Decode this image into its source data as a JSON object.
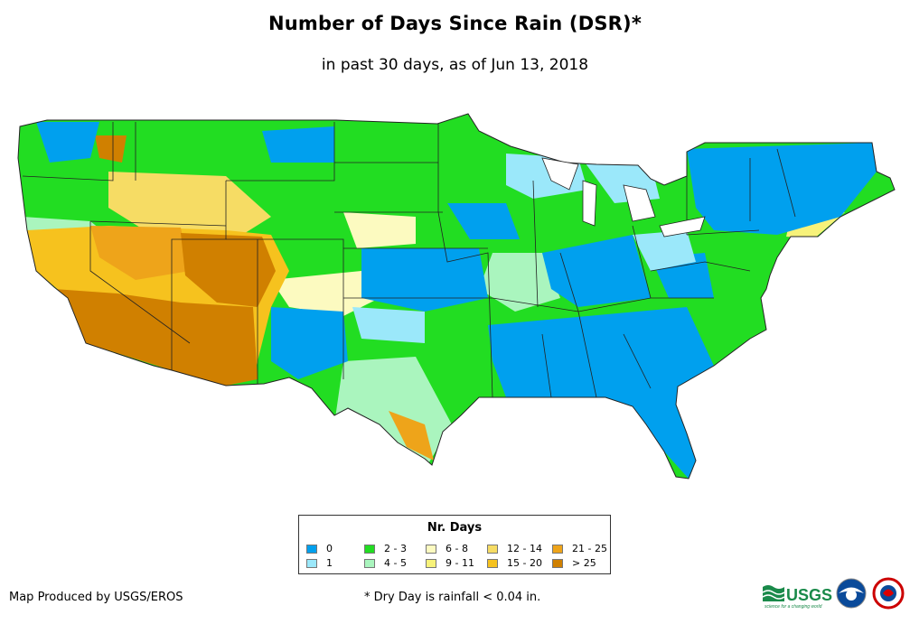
{
  "title": "Number of Days Since Rain (DSR)*",
  "subtitle": "in past 30 days, as of Jun 13, 2018",
  "legend": {
    "title": "Nr. Days",
    "items": [
      {
        "label": "0",
        "color": "#00a0ee"
      },
      {
        "label": "1",
        "color": "#9be8fa"
      },
      {
        "label": "2 - 3",
        "color": "#22dd22"
      },
      {
        "label": "4 - 5",
        "color": "#aaf5be"
      },
      {
        "label": "6 - 8",
        "color": "#fcfac0"
      },
      {
        "label": "9 - 11",
        "color": "#f7f27a"
      },
      {
        "label": "12 - 14",
        "color": "#f6dc64"
      },
      {
        "label": "15 - 20",
        "color": "#f6c21e"
      },
      {
        "label": "21 - 25",
        "color": "#eea41a"
      },
      {
        "label": "> 25",
        "color": "#d08000"
      }
    ]
  },
  "credit": "Map Produced by USGS/EROS",
  "footnote": "* Dry Day is rainfall < 0.04 in.",
  "logos": {
    "usgs_text": "USGS",
    "usgs_tagline": "science for a changing world"
  }
}
